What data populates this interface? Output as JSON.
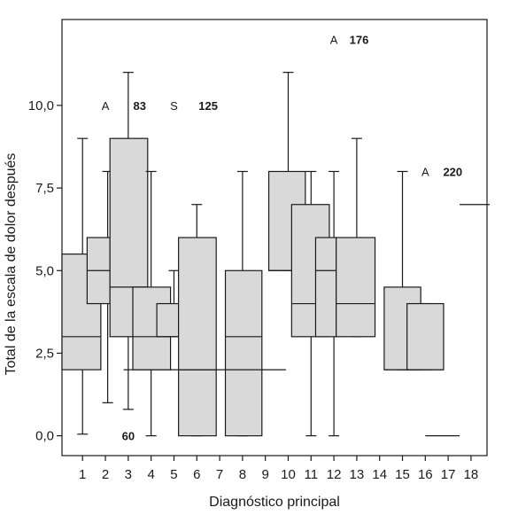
{
  "chart_data": {
    "type": "box",
    "title": "",
    "xlabel": "Diagnóstico principal",
    "ylabel": "Total de la escala de dolor después",
    "ylim": [
      -0.6,
      12.6
    ],
    "xlim": [
      0.1,
      18.7
    ],
    "y_ticks": [
      "0,0",
      "2,5",
      "5,0",
      "7,5",
      "10,0"
    ],
    "y_tick_values": [
      0,
      2.5,
      5,
      7.5,
      10
    ],
    "x_ticks": [
      "1",
      "2",
      "3",
      "4",
      "5",
      "6",
      "7",
      "8",
      "9",
      "10",
      "11",
      "12",
      "13",
      "14",
      "15",
      "16",
      "17",
      "18"
    ],
    "grid": false,
    "boxes": [
      {
        "x": 1.0,
        "left": 0.1,
        "right": 1.8,
        "q1": 2.0,
        "median": 3.0,
        "q3": 5.5,
        "whisker_low": 0.05,
        "whisker_high": 9.0
      },
      {
        "x": 2.1,
        "left": 1.2,
        "right": 2.2,
        "q1": 4.0,
        "median": 5.0,
        "q3": 6.0,
        "whisker_low": 1.0,
        "whisker_high": 8.0
      },
      {
        "x": 3.0,
        "left": 2.2,
        "right": 3.85,
        "q1": 3.0,
        "median": 4.5,
        "q3": 9.0,
        "whisker_low": 0.8,
        "whisker_high": 11.0
      },
      {
        "x": 4.0,
        "left": 3.2,
        "right": 4.85,
        "q1": 2.0,
        "median": 3.0,
        "q3": 4.5,
        "whisker_low": 0.0,
        "whisker_high": 8.0
      },
      {
        "x": 5.0,
        "left": 4.25,
        "right": 5.2,
        "q1": 3.0,
        "median": 3.0,
        "q3": 4.0,
        "whisker_low": 3.0,
        "whisker_high": 5.0
      },
      {
        "x": 6.0,
        "left": 5.2,
        "right": 6.85,
        "q1": 0.0,
        "median": 2.0,
        "q3": 6.0,
        "whisker_low": 0.0,
        "whisker_high": 7.0
      },
      {
        "x": 8.0,
        "left": 7.25,
        "right": 8.85,
        "q1": 0.0,
        "median": 3.0,
        "q3": 5.0,
        "whisker_low": 0.0,
        "whisker_high": 8.0
      },
      {
        "x": 10.0,
        "left": 9.15,
        "right": 10.75,
        "q1": 5.0,
        "median": 5.0,
        "q3": 8.0,
        "whisker_low": 5.0,
        "whisker_high": 11.0
      },
      {
        "x": 11.0,
        "left": 10.15,
        "right": 11.8,
        "q1": 3.0,
        "median": 4.0,
        "q3": 7.0,
        "whisker_low": 0.0,
        "whisker_high": 8.0
      },
      {
        "x": 12.0,
        "left": 11.2,
        "right": 12.1,
        "q1": 3.0,
        "median": 5.0,
        "q3": 6.0,
        "whisker_low": 0.0,
        "whisker_high": 8.0
      },
      {
        "x": 13.0,
        "left": 12.1,
        "right": 13.8,
        "q1": 3.0,
        "median": 4.0,
        "q3": 6.0,
        "whisker_low": 3.0,
        "whisker_high": 9.0
      },
      {
        "x": 15.0,
        "left": 14.2,
        "right": 15.8,
        "q1": 2.0,
        "median": 2.0,
        "q3": 4.5,
        "whisker_low": 2.0,
        "whisker_high": 8.0
      },
      {
        "x": 16.0,
        "left": 15.2,
        "right": 16.8,
        "q1": 2.0,
        "median": 2.0,
        "q3": 4.0,
        "whisker_low": 2.0,
        "whisker_high": 4.0
      }
    ],
    "flat_lines": [
      {
        "x_from": 2.8,
        "x_to": 9.9,
        "y": 2.0
      },
      {
        "x_from": 16.0,
        "x_to": 17.5,
        "y": 0.0
      },
      {
        "x_from": 17.5,
        "x_to": 19.0,
        "y": 7.0
      }
    ],
    "outlier_labels": [
      {
        "letter": "A",
        "number": "83",
        "x_letter": 2.0,
        "x_number": 3.5,
        "y": 10.0
      },
      {
        "letter": "S",
        "number": "125",
        "x_letter": 5.0,
        "x_number": 6.5,
        "y": 10.0
      },
      {
        "letter": "A",
        "number": "176",
        "x_letter": 12.0,
        "x_number": 13.1,
        "y": 12.0
      },
      {
        "letter": "A",
        "number": "220",
        "x_letter": 16.0,
        "x_number": 17.2,
        "y": 8.0
      },
      {
        "letter": "",
        "number": "60",
        "x_letter": 3.0,
        "x_number": 3.0,
        "y": 0.0
      }
    ]
  }
}
